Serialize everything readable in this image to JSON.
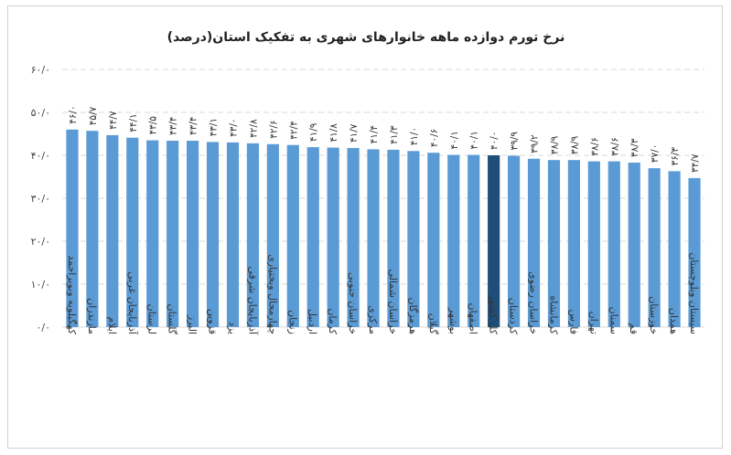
{
  "chart_data": {
    "type": "bar",
    "title": "نرخ تورم دوازده ماهه خانوارهای شهری به تفکیک استان(درصد)",
    "xlabel": "",
    "ylabel": "",
    "ylim": [
      0,
      60
    ],
    "yticks": [
      "۰/۰",
      "۱۰/۰",
      "۲۰/۰",
      "۳۰/۰",
      "۴۰/۰",
      "۵۰/۰",
      "۶۰/۰"
    ],
    "ytick_values": [
      0,
      10,
      20,
      30,
      40,
      50,
      60
    ],
    "grid": true,
    "bar_color": "#5b9bd5",
    "highlight_color": "#1f4e79",
    "highlight_index": 21,
    "categories": [
      "کهگیلویه وبویراحمد",
      "مازندران",
      "ایلام",
      "آذربایجان غربی",
      "لرستان",
      "گلستان",
      "البرز",
      "قزوین",
      "یزد",
      "آذربایجان شرقی",
      "چهارمحال وبختیاری",
      "زنجان",
      "اردبیل",
      "کرمان",
      "خراسان جنوبی",
      "مرکزی",
      "خراسان شمالی",
      "هرمزگان",
      "گیلان",
      "بوشهر",
      "اصفهان",
      "کل کشور",
      "کردستان",
      "خراسان رضوی",
      "کرمانشاه",
      "فارس",
      "تهران",
      "سمنان",
      "قم",
      "خوزستان",
      "همدان",
      "سیستان وبلوچستان"
    ],
    "values": [
      46.0,
      45.7,
      44.7,
      44.1,
      43.5,
      43.4,
      43.4,
      43.1,
      43.0,
      42.8,
      42.6,
      42.4,
      41.9,
      41.8,
      41.7,
      41.4,
      41.3,
      41.0,
      40.6,
      40.1,
      40.1,
      40.0,
      39.9,
      39.2,
      38.9,
      38.9,
      38.6,
      38.6,
      38.3,
      37.0,
      36.3,
      34.7
    ],
    "value_labels": [
      "۴۶/۰",
      "۴۵/۷",
      "۴۴/۷",
      "۴۴/۱",
      "۴۳/۵",
      "۴۳/۴",
      "۴۳/۴",
      "۴۳/۱",
      "۴۳/۰",
      "۴۲/۸",
      "۴۲/۶",
      "۴۲/۴",
      "۴۱/۹",
      "۴۱/۸",
      "۴۱/۷",
      "۴۱/۴",
      "۴۱/۳",
      "۴۱/۰",
      "۴۰/۶",
      "۴۰/۱",
      "۴۰/۱",
      "۴۰/۰",
      "۳۹/۹",
      "۳۹/۲",
      "۳۸/۹",
      "۳۸/۹",
      "۳۸/۶",
      "۳۸/۶",
      "۳۸/۳",
      "۳۷/۰",
      "۳۶/۳",
      "۳۴/۷"
    ]
  }
}
